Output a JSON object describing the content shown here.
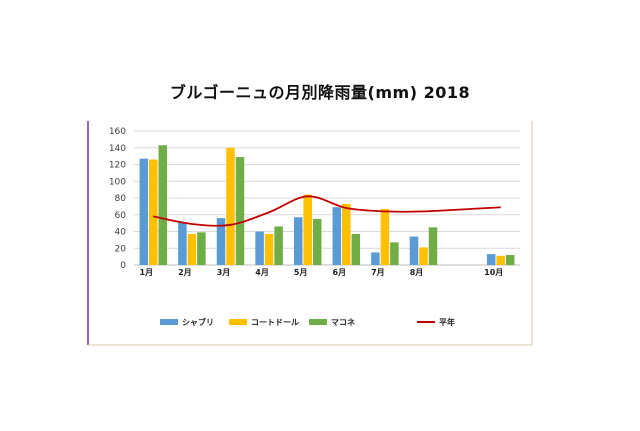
{
  "chart_data": {
    "type": "bar",
    "title": "ブルゴーニュの月別降雨量(mm) 2018",
    "categories": [
      "1月",
      "2月",
      "3月",
      "4月",
      "5月",
      "6月",
      "7月",
      "8月",
      "",
      "10月"
    ],
    "series": [
      {
        "name": "シャブリ",
        "type": "bar",
        "color": "#5b9bd5",
        "values": [
          127,
          51,
          56,
          40,
          57,
          69,
          15,
          34,
          null,
          13
        ]
      },
      {
        "name": "コートドール",
        "type": "bar",
        "color": "#ffc000",
        "values": [
          126,
          37,
          140,
          37,
          84,
          73,
          67,
          21,
          null,
          11
        ]
      },
      {
        "name": "マコネ",
        "type": "bar",
        "color": "#70ad47",
        "values": [
          143,
          39,
          129,
          46,
          55,
          37,
          27,
          45,
          null,
          12
        ]
      },
      {
        "name": "平年",
        "type": "line",
        "color": "#c00000",
        "values": [
          58,
          49,
          48,
          63,
          82,
          68,
          64,
          64,
          null,
          69
        ]
      }
    ],
    "ylim": [
      0,
      160
    ],
    "yticks": [
      0,
      20,
      40,
      60,
      80,
      100,
      120,
      140,
      160
    ],
    "grid": true,
    "legend_position": "bottom"
  }
}
